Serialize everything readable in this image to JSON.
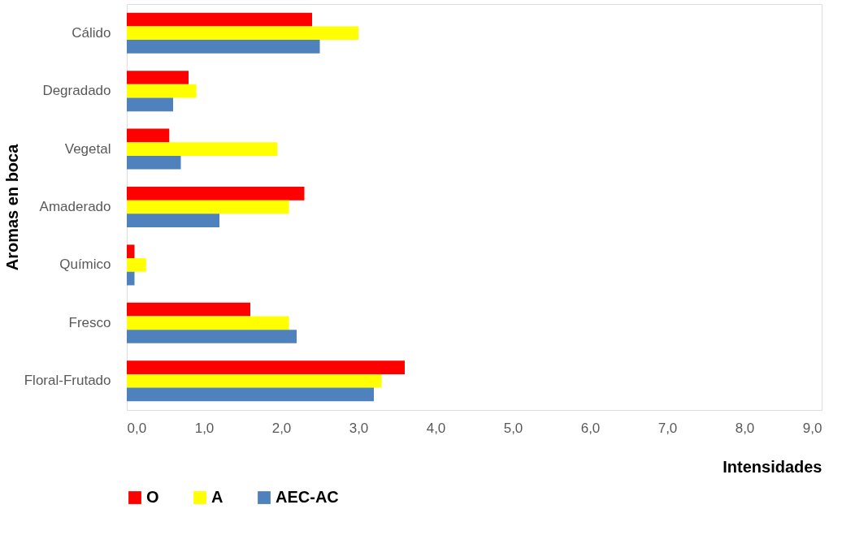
{
  "chart_data": {
    "type": "bar",
    "orientation": "horizontal",
    "xlabel": "Intensidades",
    "ylabel": "Aromas en boca",
    "categories": [
      "Cálido",
      "Degradado",
      "Vegetal",
      "Amaderado",
      "Químico",
      "Fresco",
      "Floral-Frutado"
    ],
    "series": [
      {
        "name": "O",
        "color": "#ff0000",
        "values": [
          2.4,
          0.8,
          0.55,
          2.3,
          0.1,
          1.6,
          3.6
        ]
      },
      {
        "name": "A",
        "color": "#ffff00",
        "values": [
          3.0,
          0.9,
          1.95,
          2.1,
          0.25,
          2.1,
          3.3
        ]
      },
      {
        "name": "AEC-AC",
        "color": "#4f81bd",
        "values": [
          2.5,
          0.6,
          0.7,
          1.2,
          0.1,
          2.2,
          3.2
        ]
      }
    ],
    "xlim": [
      0,
      9
    ],
    "xticks": [
      {
        "value": 0,
        "label": "0,0"
      },
      {
        "value": 1,
        "label": "1,0"
      },
      {
        "value": 2,
        "label": "2,0"
      },
      {
        "value": 3,
        "label": "3,0"
      },
      {
        "value": 4,
        "label": "4,0"
      },
      {
        "value": 5,
        "label": "5,0"
      },
      {
        "value": 6,
        "label": "6,0"
      },
      {
        "value": 7,
        "label": "7,0"
      },
      {
        "value": 8,
        "label": "8,0"
      },
      {
        "value": 9,
        "label": "9,0"
      }
    ],
    "grid": false,
    "legend": "bottom"
  }
}
